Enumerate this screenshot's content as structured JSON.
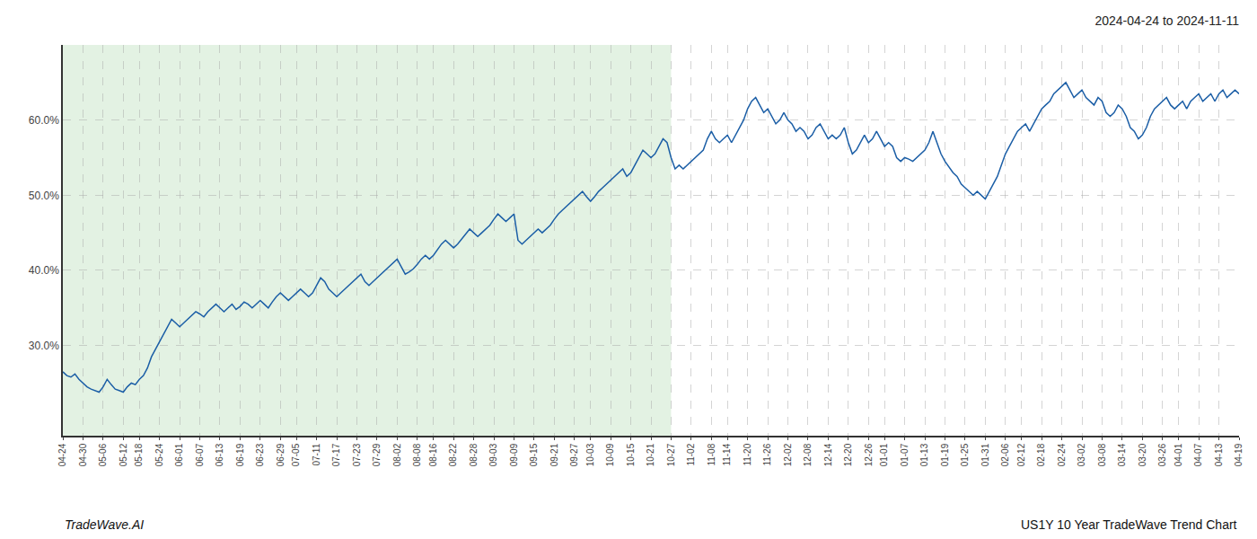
{
  "chart_data": {
    "type": "line",
    "title": "2024-04-24 to 2024-11-11",
    "annotations": [
      "TradeWave.AI",
      "US1Y 10 Year TradeWave Trend Chart"
    ],
    "color": "#1b5ea6",
    "grid": true,
    "ylim": [
      18,
      70
    ],
    "yticks": [
      {
        "value": 30.0,
        "label": "30.0%"
      },
      {
        "value": 40.0,
        "label": "40.0%"
      },
      {
        "value": 50.0,
        "label": "50.0%"
      },
      {
        "value": 60.0,
        "label": "60.0%"
      }
    ],
    "spans": [
      {
        "from": "04-24",
        "to": "10-27",
        "color": "#cce8cc"
      }
    ],
    "categories": [
      "04-24",
      null,
      null,
      null,
      null,
      "04-30",
      null,
      null,
      null,
      null,
      "05-06",
      null,
      null,
      null,
      null,
      "05-12",
      null,
      null,
      null,
      "05-18",
      null,
      null,
      null,
      null,
      "05-24",
      null,
      null,
      null,
      null,
      "06-01",
      null,
      null,
      null,
      null,
      "06-07",
      null,
      null,
      null,
      null,
      "06-13",
      null,
      null,
      null,
      null,
      "06-19",
      null,
      null,
      null,
      null,
      "06-23",
      null,
      null,
      null,
      null,
      "06-29",
      null,
      null,
      null,
      "07-05",
      null,
      null,
      null,
      null,
      "07-11",
      null,
      null,
      null,
      null,
      "07-17",
      null,
      null,
      null,
      null,
      "07-23",
      null,
      null,
      null,
      null,
      "07-29",
      null,
      null,
      null,
      null,
      "08-02",
      null,
      null,
      null,
      null,
      "08-08",
      null,
      null,
      null,
      "08-16",
      null,
      null,
      null,
      null,
      "08-22",
      null,
      null,
      null,
      null,
      "08-28",
      null,
      null,
      null,
      null,
      "09-03",
      null,
      null,
      null,
      null,
      "09-09",
      null,
      null,
      null,
      null,
      "09-15",
      null,
      null,
      null,
      null,
      "09-21",
      null,
      null,
      null,
      null,
      "09-27",
      null,
      null,
      null,
      "10-03",
      null,
      null,
      null,
      null,
      "10-09",
      null,
      null,
      null,
      null,
      "10-15",
      null,
      null,
      null,
      null,
      "10-21",
      null,
      null,
      null,
      null,
      "10-27",
      null,
      null,
      null,
      null,
      "11-02",
      null,
      null,
      null,
      null,
      "11-08",
      null,
      null,
      null,
      "11-14",
      null,
      null,
      null,
      null,
      "11-20",
      null,
      null,
      null,
      null,
      "11-26",
      null,
      null,
      null,
      null,
      "12-02",
      null,
      null,
      null,
      null,
      "12-08",
      null,
      null,
      null,
      null,
      "12-14",
      null,
      null,
      null,
      null,
      "12-20",
      null,
      null,
      null,
      null,
      "12-26",
      null,
      null,
      null,
      "01-01",
      null,
      null,
      null,
      null,
      "01-07",
      null,
      null,
      null,
      null,
      "01-13",
      null,
      null,
      null,
      null,
      "01-19",
      null,
      null,
      null,
      null,
      "01-25",
      null,
      null,
      null,
      null,
      "01-31",
      null,
      null,
      null,
      null,
      "02-06",
      null,
      null,
      null,
      "02-12",
      null,
      null,
      null,
      null,
      "02-18",
      null,
      null,
      null,
      null,
      "02-24",
      null,
      null,
      null,
      null,
      "03-02",
      null,
      null,
      null,
      null,
      "03-08",
      null,
      null,
      null,
      null,
      "03-14",
      null,
      null,
      null,
      null,
      "03-20",
      null,
      null,
      null,
      null,
      "03-26",
      null,
      null,
      null,
      "04-01",
      null,
      null,
      null,
      null,
      "04-07",
      null,
      null,
      null,
      null,
      "04-13",
      null,
      null,
      null,
      null,
      "04-19"
    ],
    "values": [
      26.5,
      26.0,
      25.8,
      26.2,
      25.5,
      25.0,
      24.5,
      24.2,
      24.0,
      23.8,
      24.5,
      25.5,
      24.8,
      24.2,
      24.0,
      23.8,
      24.5,
      25.0,
      24.8,
      25.5,
      26.0,
      27.0,
      28.5,
      29.5,
      30.5,
      31.5,
      32.5,
      33.5,
      33.0,
      32.5,
      33.0,
      33.5,
      34.0,
      34.5,
      34.2,
      33.8,
      34.5,
      35.0,
      35.5,
      35.0,
      34.5,
      35.0,
      35.5,
      34.8,
      35.2,
      35.8,
      35.5,
      35.0,
      35.5,
      36.0,
      35.5,
      35.0,
      35.8,
      36.5,
      37.0,
      36.5,
      36.0,
      36.5,
      37.0,
      37.5,
      37.0,
      36.5,
      37.0,
      38.0,
      39.0,
      38.5,
      37.5,
      37.0,
      36.5,
      37.0,
      37.5,
      38.0,
      38.5,
      39.0,
      39.5,
      38.5,
      38.0,
      38.5,
      39.0,
      39.5,
      40.0,
      40.5,
      41.0,
      41.5,
      40.5,
      39.5,
      39.8,
      40.2,
      40.8,
      41.5,
      42.0,
      41.5,
      42.0,
      42.8,
      43.5,
      44.0,
      43.5,
      43.0,
      43.5,
      44.2,
      44.8,
      45.5,
      45.0,
      44.5,
      45.0,
      45.5,
      46.0,
      46.8,
      47.5,
      47.0,
      46.5,
      47.0,
      47.5,
      44.0,
      43.5,
      44.0,
      44.5,
      45.0,
      45.5,
      45.0,
      45.5,
      46.0,
      46.8,
      47.5,
      48.0,
      48.5,
      49.0,
      49.5,
      50.0,
      50.5,
      49.8,
      49.2,
      49.8,
      50.5,
      51.0,
      51.5,
      52.0,
      52.5,
      53.0,
      53.5,
      52.5,
      53.0,
      54.0,
      55.0,
      56.0,
      55.5,
      55.0,
      55.5,
      56.5,
      57.5,
      57.0,
      55.0,
      53.5,
      54.0,
      53.5,
      54.0,
      54.5,
      55.0,
      55.5,
      56.0,
      57.5,
      58.5,
      57.5,
      57.0,
      57.5,
      58.0,
      57.0,
      58.0,
      59.0,
      60.0,
      61.5,
      62.5,
      63.0,
      62.0,
      61.0,
      61.5,
      60.5,
      59.5,
      60.0,
      61.0,
      60.0,
      59.5,
      58.5,
      59.0,
      58.5,
      57.5,
      58.0,
      59.0,
      59.5,
      58.5,
      57.5,
      58.0,
      57.5,
      58.0,
      59.0,
      57.0,
      55.5,
      56.0,
      57.0,
      58.0,
      57.0,
      57.5,
      58.5,
      57.5,
      56.5,
      57.0,
      56.5,
      55.0,
      54.5,
      55.0,
      54.8,
      54.5,
      55.0,
      55.5,
      56.0,
      57.0,
      58.5,
      57.0,
      55.5,
      54.5,
      53.8,
      53.0,
      52.5,
      51.5,
      51.0,
      50.5,
      50.0,
      50.5,
      50.0,
      49.5,
      50.5,
      51.5,
      52.5,
      54.0,
      55.5,
      56.5,
      57.5,
      58.5,
      59.0,
      59.5,
      58.5,
      59.5,
      60.5,
      61.5,
      62.0,
      62.5,
      63.5,
      64.0,
      64.5,
      65.0,
      64.0,
      63.0,
      63.5,
      64.0,
      63.0,
      62.5,
      62.0,
      63.0,
      62.5,
      61.0,
      60.5,
      61.0,
      62.0,
      61.5,
      60.5,
      59.0,
      58.5,
      57.5,
      58.0,
      59.0,
      60.5,
      61.5,
      62.0,
      62.5,
      63.0,
      62.0,
      61.5,
      62.0,
      62.5,
      61.5,
      62.5,
      63.0,
      63.5,
      62.5,
      63.0,
      63.5,
      62.5,
      63.5,
      64.0,
      63.0,
      63.5,
      64.0,
      63.5
    ]
  }
}
